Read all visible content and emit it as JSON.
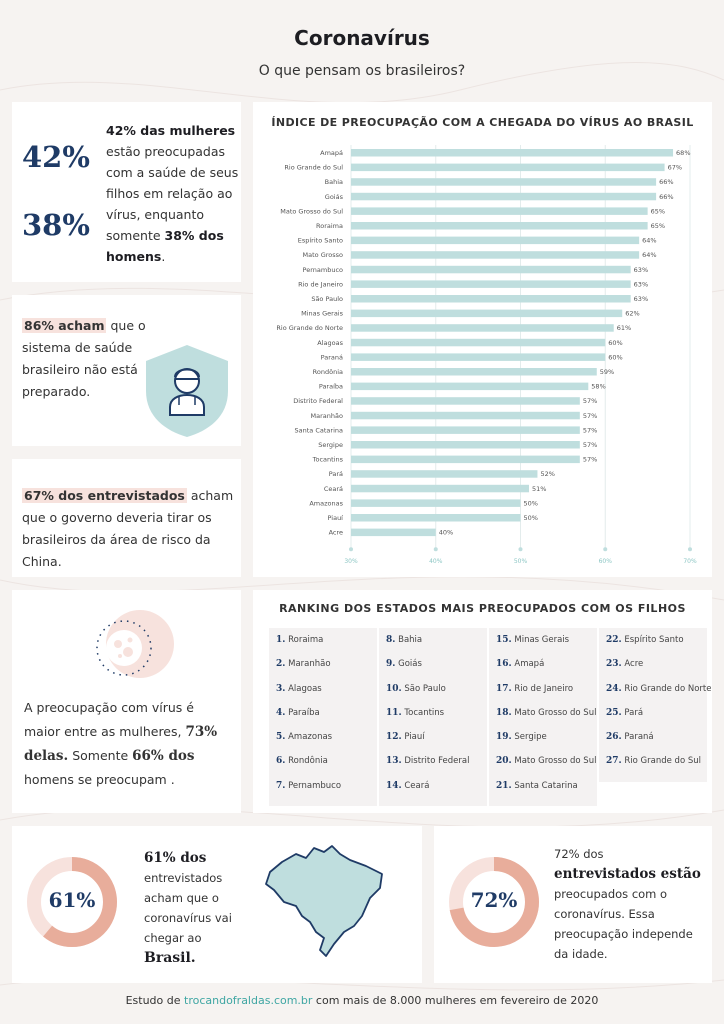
{
  "header": {
    "title": "Coronavírus",
    "subtitle": "O que pensam os brasileiros?"
  },
  "card_women": {
    "stat_women": "42%",
    "stat_men": "38%",
    "text_bold_1": "42% das mulheres",
    "text_1": " estão preocupadas com a saúde de seus filhos em relação ao vírus, enquanto somente ",
    "text_bold_2": "38% dos homens",
    "text_2": "."
  },
  "card_health": {
    "highlight": "86% acham",
    "text": " que o sistema de saúde brasileiro não está preparado.",
    "icon": "doctor-shield-icon"
  },
  "card_china": {
    "highlight": "67% dos entrevistados",
    "text": " acham que o governo deveria tirar os brasileiros da área de risco da China."
  },
  "card_gender": {
    "icon": "virus-icon",
    "text_1": "A preocupação com vírus é maior entre as mulheres, ",
    "bold_1": "73% delas.",
    "text_2": " Somente ",
    "bold_2": "66% dos",
    "text_3": " homens se preocupam ."
  },
  "card_arrival": {
    "percent": "61%",
    "percent_value": 61,
    "bold_1": "61% dos",
    "text_1": " entrevistados acham que o coronavírus vai chegar ao ",
    "bold_2": "Brasil.",
    "icon": "brazil-map-icon"
  },
  "card_concern": {
    "percent": "72%",
    "percent_value": 72,
    "text_1": "72% dos ",
    "bold_1": "entrevistados estão",
    "text_2": " preocupados com o coronavírus. Essa preocupação independe da idade."
  },
  "ranking": {
    "title": "RANKING DOS ESTADOS MAIS PREOCUPADOS COM OS FILHOS",
    "columns": [
      [
        {
          "n": "1.",
          "s": "Roraima"
        },
        {
          "n": "2.",
          "s": "Maranhão"
        },
        {
          "n": "3.",
          "s": "Alagoas"
        },
        {
          "n": "4.",
          "s": "Paraíba"
        },
        {
          "n": "5.",
          "s": "Amazonas"
        },
        {
          "n": "6.",
          "s": "Rondônia"
        },
        {
          "n": "7.",
          "s": "Pernambuco"
        }
      ],
      [
        {
          "n": "8.",
          "s": "Bahia"
        },
        {
          "n": "9.",
          "s": "Goiás"
        },
        {
          "n": "10.",
          "s": "São Paulo"
        },
        {
          "n": "11.",
          "s": "Tocantins"
        },
        {
          "n": "12.",
          "s": "Piauí"
        },
        {
          "n": "13.",
          "s": "Distrito Federal"
        },
        {
          "n": "14.",
          "s": "Ceará"
        }
      ],
      [
        {
          "n": "15.",
          "s": "Minas Gerais"
        },
        {
          "n": "16.",
          "s": "Amapá"
        },
        {
          "n": "17.",
          "s": "Rio de Janeiro"
        },
        {
          "n": "18.",
          "s": "Mato Grosso do Sul"
        },
        {
          "n": "19.",
          "s": "Sergipe"
        },
        {
          "n": "20.",
          "s": "Mato Grosso do Sul"
        },
        {
          "n": "21.",
          "s": "Santa Catarina"
        }
      ],
      [
        {
          "n": "22.",
          "s": "Espírito Santo"
        },
        {
          "n": "23.",
          "s": "Acre"
        },
        {
          "n": "24.",
          "s": "Rio Grande do Norte"
        },
        {
          "n": "25.",
          "s": "Pará"
        },
        {
          "n": "26.",
          "s": "Paraná"
        },
        {
          "n": "27.",
          "s": "Rio Grande do Sul"
        }
      ]
    ]
  },
  "footer": {
    "prefix": "Estudo de ",
    "link": "trocandofraldas.com.br",
    "suffix": " com mais de 8.000 mulheres em fevereiro de 2020"
  },
  "colors": {
    "navy": "#1f3b66",
    "bar": "#bfdede",
    "pink": "#f7e2dd",
    "salmon": "#e8ad9b",
    "teal": "#3fa6a3"
  },
  "chart_data": {
    "type": "bar",
    "orientation": "horizontal",
    "title": "ÍNDICE DE PREOCUPAÇÃO COM A CHEGADA DO VÍRUS AO BRASIL",
    "categories": [
      "Amapá",
      "Rio Grande do Sul",
      "Bahia",
      "Goiás",
      "Mato Grosso do Sul",
      "Roraima",
      "Espírito Santo",
      "Mato Grosso",
      "Pernambuco",
      "Rio de Janeiro",
      "São Paulo",
      "Minas Gerais",
      "Rio Grande do Norte",
      "Alagoas",
      "Paraná",
      "Rondônia",
      "Paraíba",
      "Distrito Federal",
      "Maranhão",
      "Santa Catarina",
      "Sergipe",
      "Tocantins",
      "Pará",
      "Ceará",
      "Amazonas",
      "Piauí",
      "Acre"
    ],
    "values": [
      68,
      67,
      66,
      66,
      65,
      65,
      64,
      64,
      63,
      63,
      63,
      62,
      61,
      60,
      60,
      59,
      58,
      57,
      57,
      57,
      57,
      57,
      52,
      51,
      50,
      50,
      40
    ],
    "value_labels": [
      "68%",
      "67%",
      "66%",
      "66%",
      "65%",
      "65%",
      "64%",
      "64%",
      "63%",
      "63%",
      "63%",
      "62%",
      "61%",
      "60%",
      "60%",
      "59%",
      "58%",
      "57%",
      "57%",
      "57%",
      "57%",
      "57%",
      "52%",
      "51%",
      "50%",
      "50%",
      "40%"
    ],
    "xlim": [
      30,
      70
    ],
    "xticks": [
      "30%",
      "40%",
      "50%",
      "60%",
      "70%"
    ],
    "grid": true
  }
}
